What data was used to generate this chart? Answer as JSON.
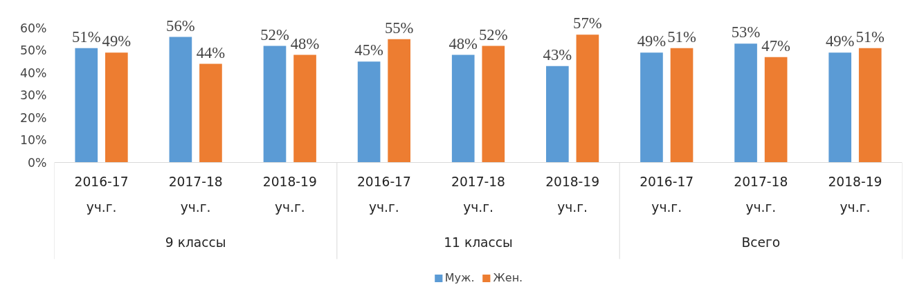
{
  "chart_data": {
    "type": "bar",
    "categories": [
      "2016-17 уч.г.",
      "2017-18 уч.г.",
      "2018-19 уч.г.",
      "2016-17 уч.г.",
      "2017-18 уч.г.",
      "2018-19 уч.г.",
      "2016-17 уч.г.",
      "2017-18 уч.г.",
      "2018-19 уч.г."
    ],
    "series": [
      {
        "name": "Муж.",
        "color": "#5b9bd5",
        "values": [
          51,
          56,
          52,
          45,
          48,
          43,
          49,
          53,
          49
        ],
        "value_labels": [
          "51%",
          "56%",
          "52%",
          "45%",
          "48%",
          "43%",
          "49%",
          "53%",
          "49%"
        ]
      },
      {
        "name": "Жен.",
        "color": "#ed7d31",
        "values": [
          49,
          44,
          48,
          55,
          52,
          57,
          51,
          47,
          51
        ],
        "value_labels": [
          "49%",
          "44%",
          "48%",
          "55%",
          "52%",
          "57%",
          "51%",
          "47%",
          "51%"
        ]
      }
    ],
    "annotations": [
      "9 классы",
      "11 классы",
      "Всего"
    ],
    "ylim": [
      0,
      60
    ],
    "yticks": [
      {
        "value": 0,
        "label": "0%"
      },
      {
        "value": 10,
        "label": "10%"
      },
      {
        "value": 20,
        "label": "20%"
      },
      {
        "value": 30,
        "label": "30%"
      },
      {
        "value": 40,
        "label": "40%"
      },
      {
        "value": 50,
        "label": "50%"
      },
      {
        "value": 60,
        "label": "60%"
      }
    ],
    "grid": false,
    "legend": "bottom"
  }
}
